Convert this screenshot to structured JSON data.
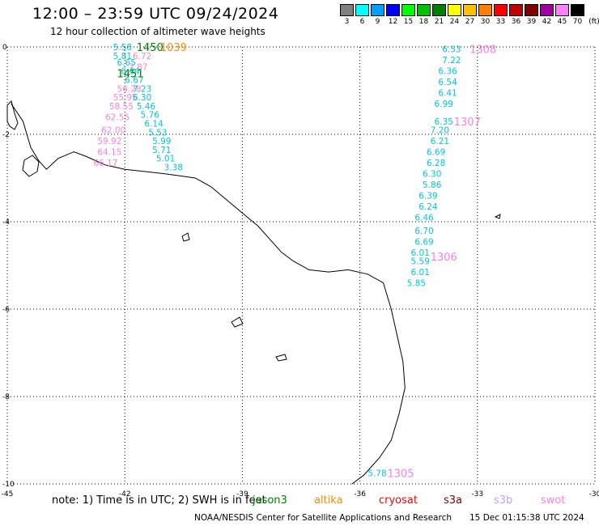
{
  "header": {
    "title": "12:00 – 23:59 UTC 09/24/2024",
    "subtitle": "12 hour collection of altimeter wave heights"
  },
  "legend": {
    "unit": "(ft)",
    "bins": [
      {
        "label": "3",
        "color": "#808080"
      },
      {
        "label": "6",
        "color": "#00ffff"
      },
      {
        "label": "9",
        "color": "#00a0ff"
      },
      {
        "label": "12",
        "color": "#0000ff"
      },
      {
        "label": "15",
        "color": "#00ff00"
      },
      {
        "label": "18",
        "color": "#00c000"
      },
      {
        "label": "21",
        "color": "#008000"
      },
      {
        "label": "24",
        "color": "#ffff00"
      },
      {
        "label": "27",
        "color": "#ffc000"
      },
      {
        "label": "30",
        "color": "#ff8000"
      },
      {
        "label": "33",
        "color": "#ff0000"
      },
      {
        "label": "36",
        "color": "#c00000"
      },
      {
        "label": "39",
        "color": "#800000"
      },
      {
        "label": "42",
        "color": "#a000a0"
      },
      {
        "label": "45",
        "color": "#ff80ff"
      },
      {
        "label": "70",
        "color": "#000000"
      }
    ]
  },
  "axes": {
    "x_ticks": [
      "-45",
      "-42",
      "-39",
      "-36",
      "-33",
      "-30"
    ],
    "y_ticks": [
      "0",
      "-2",
      "-4",
      "-6",
      "-8",
      "-10"
    ],
    "lon_range": [
      -45,
      -30
    ],
    "lat_range": [
      -10,
      0
    ]
  },
  "colors": {
    "jason3": "#00c8d8",
    "swot": "#ff80e0",
    "altika": "#ff8c00",
    "sentinel3a_track_label": "#008000"
  },
  "tracks": [
    {
      "label": "1451",
      "color": "#008000",
      "pos": [
        -42.2,
        -0.6
      ]
    },
    {
      "label": "1450",
      "color": "#008000",
      "pos": [
        -41.7,
        0.0
      ]
    },
    {
      "label": "1039",
      "color": "#ff8c00",
      "pos": [
        -41.1,
        0.0
      ]
    },
    {
      "label": "1308",
      "color": "#ff80e0",
      "pos": [
        -33.2,
        -0.05
      ]
    },
    {
      "label": "1307",
      "color": "#ff80e0",
      "pos": [
        -33.6,
        -1.7
      ]
    },
    {
      "label": "1306",
      "color": "#ff80e0",
      "pos": [
        -34.2,
        -4.8
      ]
    },
    {
      "label": "1305",
      "color": "#ff80e0",
      "pos": [
        -35.3,
        -9.75
      ]
    }
  ],
  "observations": [
    {
      "v": "5.58",
      "lon": -42.3,
      "lat": 0.0,
      "c": "#00c8d8"
    },
    {
      "v": "5.81",
      "lon": -42.3,
      "lat": -0.2,
      "c": "#00c8d8"
    },
    {
      "v": "6.72",
      "lon": -41.8,
      "lat": -0.2,
      "c": "#ff80e0"
    },
    {
      "v": "6.65",
      "lon": -42.2,
      "lat": -0.35,
      "c": "#00c8d8"
    },
    {
      "v": "7.87",
      "lon": -41.9,
      "lat": -0.45,
      "c": "#ff80e0"
    },
    {
      "v": "6.64",
      "lon": -42.1,
      "lat": -0.55,
      "c": "#00c8d8"
    },
    {
      "v": "6.67",
      "lon": -42.0,
      "lat": -0.75,
      "c": "#00c8d8"
    },
    {
      "v": "56.28",
      "lon": -42.2,
      "lat": -0.95,
      "c": "#ff80e0"
    },
    {
      "v": "7.23",
      "lon": -41.8,
      "lat": -0.95,
      "c": "#00c8d8"
    },
    {
      "v": "55.95",
      "lon": -42.3,
      "lat": -1.15,
      "c": "#ff80e0"
    },
    {
      "v": "6.30",
      "lon": -41.8,
      "lat": -1.15,
      "c": "#00c8d8"
    },
    {
      "v": "58.55",
      "lon": -42.4,
      "lat": -1.35,
      "c": "#ff80e0"
    },
    {
      "v": "5.46",
      "lon": -41.7,
      "lat": -1.35,
      "c": "#00c8d8"
    },
    {
      "v": "62.55",
      "lon": -42.5,
      "lat": -1.6,
      "c": "#ff80e0"
    },
    {
      "v": "5.76",
      "lon": -41.6,
      "lat": -1.55,
      "c": "#00c8d8"
    },
    {
      "v": "6.14",
      "lon": -41.5,
      "lat": -1.75,
      "c": "#00c8d8"
    },
    {
      "v": "62.00",
      "lon": -42.6,
      "lat": -1.9,
      "c": "#ff80e0"
    },
    {
      "v": "5.53",
      "lon": -41.4,
      "lat": -1.95,
      "c": "#00c8d8"
    },
    {
      "v": "59.92",
      "lon": -42.7,
      "lat": -2.15,
      "c": "#ff80e0"
    },
    {
      "v": "5.99",
      "lon": -41.3,
      "lat": -2.15,
      "c": "#00c8d8"
    },
    {
      "v": "64.15",
      "lon": -42.7,
      "lat": -2.4,
      "c": "#ff80e0"
    },
    {
      "v": "5.71",
      "lon": -41.3,
      "lat": -2.35,
      "c": "#00c8d8"
    },
    {
      "v": "66.17",
      "lon": -42.8,
      "lat": -2.65,
      "c": "#ff80e0"
    },
    {
      "v": "5.01",
      "lon": -41.2,
      "lat": -2.55,
      "c": "#00c8d8"
    },
    {
      "v": "3.38",
      "lon": -41.0,
      "lat": -2.75,
      "c": "#00c8d8"
    },
    {
      "v": "6.53",
      "lon": -33.9,
      "lat": -0.05,
      "c": "#00c8d8"
    },
    {
      "v": "7.22",
      "lon": -33.9,
      "lat": -0.3,
      "c": "#00c8d8"
    },
    {
      "v": "6.36",
      "lon": -34.0,
      "lat": -0.55,
      "c": "#00c8d8"
    },
    {
      "v": "6.54",
      "lon": -34.0,
      "lat": -0.8,
      "c": "#00c8d8"
    },
    {
      "v": "6.41",
      "lon": -34.0,
      "lat": -1.05,
      "c": "#00c8d8"
    },
    {
      "v": "6.99",
      "lon": -34.1,
      "lat": -1.3,
      "c": "#00c8d8"
    },
    {
      "v": "6.35",
      "lon": -34.1,
      "lat": -1.7,
      "c": "#00c8d8"
    },
    {
      "v": "7.20",
      "lon": -34.2,
      "lat": -1.9,
      "c": "#00c8d8"
    },
    {
      "v": "6.21",
      "lon": -34.2,
      "lat": -2.15,
      "c": "#00c8d8"
    },
    {
      "v": "6.69",
      "lon": -34.3,
      "lat": -2.4,
      "c": "#00c8d8"
    },
    {
      "v": "6.28",
      "lon": -34.3,
      "lat": -2.65,
      "c": "#00c8d8"
    },
    {
      "v": "6.30",
      "lon": -34.4,
      "lat": -2.9,
      "c": "#00c8d8"
    },
    {
      "v": "5.86",
      "lon": -34.4,
      "lat": -3.15,
      "c": "#00c8d8"
    },
    {
      "v": "6.39",
      "lon": -34.5,
      "lat": -3.4,
      "c": "#00c8d8"
    },
    {
      "v": "6.24",
      "lon": -34.5,
      "lat": -3.65,
      "c": "#00c8d8"
    },
    {
      "v": "6.46",
      "lon": -34.6,
      "lat": -3.9,
      "c": "#00c8d8"
    },
    {
      "v": "6.70",
      "lon": -34.6,
      "lat": -4.2,
      "c": "#00c8d8"
    },
    {
      "v": "6.69",
      "lon": -34.6,
      "lat": -4.45,
      "c": "#00c8d8"
    },
    {
      "v": "6.01",
      "lon": -34.7,
      "lat": -4.7,
      "c": "#00c8d8"
    },
    {
      "v": "5.59",
      "lon": -34.7,
      "lat": -4.9,
      "c": "#00c8d8"
    },
    {
      "v": "6.01",
      "lon": -34.7,
      "lat": -5.15,
      "c": "#00c8d8"
    },
    {
      "v": "5.85",
      "lon": -34.8,
      "lat": -5.4,
      "c": "#00c8d8"
    },
    {
      "v": "5.78",
      "lon": -35.8,
      "lat": -9.75,
      "c": "#00c8d8"
    }
  ],
  "note": {
    "text": "note: 1) Time is in UTC; 2) SWH is in feet",
    "sat_labels": [
      {
        "label": "jason3",
        "color": "#008000"
      },
      {
        "label": "altika",
        "color": "#ff8c00"
      },
      {
        "label": "cryosat",
        "color": "#ff0000"
      },
      {
        "label": "s3a",
        "color": "#800000"
      },
      {
        "label": "s3b",
        "color": "#c0a0ff"
      },
      {
        "label": "swot",
        "color": "#ff80e0"
      }
    ]
  },
  "footer": {
    "credit": "NOAA/NESDIS Center for Satellite Applications and Research",
    "generated": "15 Dec 01:15:38 UTC 2024"
  }
}
